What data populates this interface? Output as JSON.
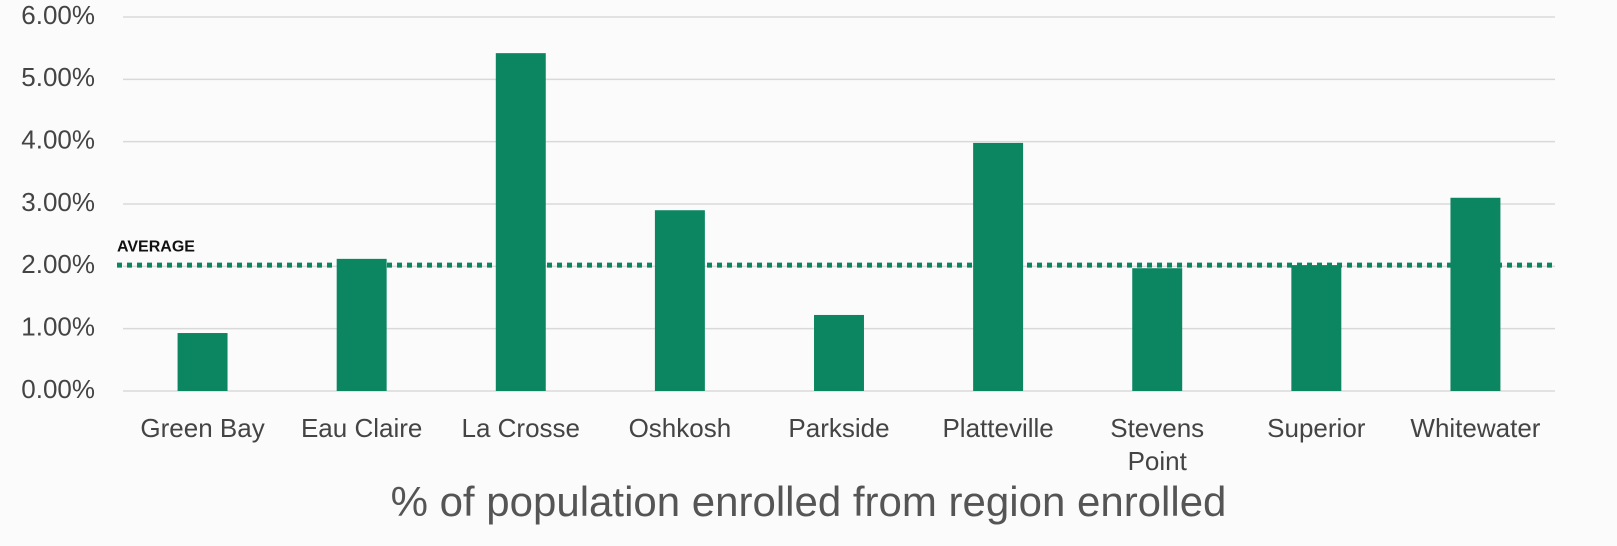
{
  "chart_data": {
    "type": "bar",
    "x_label": "% of population enrolled from region enrolled",
    "categories": [
      "Green Bay",
      "Eau Claire",
      "La Crosse",
      "Oshkosh",
      "Parkside",
      "Platteville",
      "Stevens Point",
      "Superior",
      "Whitewater"
    ],
    "values": [
      0.93,
      2.12,
      5.42,
      2.9,
      1.22,
      3.98,
      1.97,
      2.02,
      3.1
    ],
    "color": "#0b8661",
    "ylim": [
      0,
      6
    ],
    "yticks": [
      {
        "value": 0,
        "label": "0.00%"
      },
      {
        "value": 1,
        "label": "1.00%"
      },
      {
        "value": 2,
        "label": "2.00%"
      },
      {
        "value": 3,
        "label": "3.00%"
      },
      {
        "value": 4,
        "label": "4.00%"
      },
      {
        "value": 5,
        "label": "5.00%"
      },
      {
        "value": 6,
        "label": "6.00%"
      }
    ],
    "grid": true,
    "average": {
      "label": "AVERAGE",
      "value": 2.02,
      "color": "#0b8661"
    }
  }
}
